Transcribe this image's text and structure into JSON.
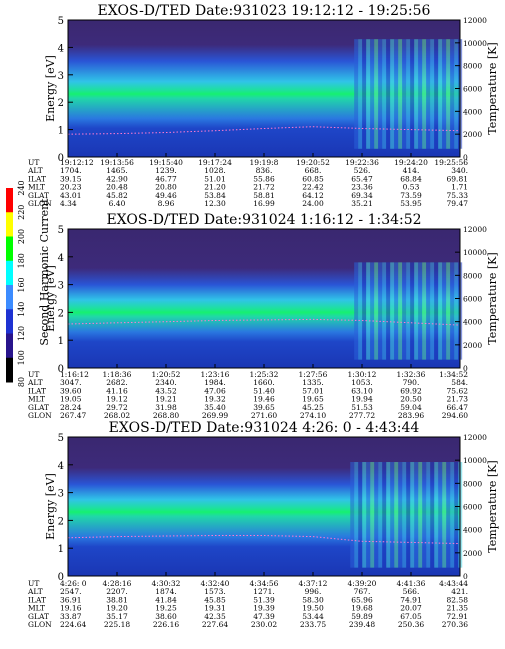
{
  "colorbar": {
    "label": "Second Harmonic Current",
    "ticks": [
      "240",
      "220",
      "200",
      "180",
      "160",
      "140",
      "120",
      "100",
      "80"
    ],
    "colors": [
      "#ff0000",
      "#ffff00",
      "#00ff00",
      "#00ffff",
      "#3c8cff",
      "#1e32d2",
      "#28148c",
      "#000000"
    ]
  },
  "chart_data": [
    {
      "type": "heatmap",
      "title": "EXOS-D/TED  Date:931023  19:12:12 - 19:25:56",
      "ylabel": "Energy [eV]",
      "y2label": "Temperature [K]",
      "ylim": [
        0,
        5
      ],
      "y2lim": [
        0,
        12000
      ],
      "yticks": [
        "0",
        "1",
        "2",
        "3",
        "4",
        "5"
      ],
      "y2ticks": [
        "0",
        "2000",
        "4000",
        "6000",
        "8000",
        "10000",
        "12000"
      ],
      "row_labels": [
        "UT",
        "ALT",
        "ILAT",
        "MLT",
        "GLAT",
        "GLON"
      ],
      "columns": [
        [
          "19:12:12",
          "1704.",
          "39.15",
          "20.23",
          "43.01",
          "4.34"
        ],
        [
          "19:13:56",
          "1465.",
          "42.90",
          "20.48",
          "45.82",
          "6.40"
        ],
        [
          "19:15:40",
          "1239.",
          "46.77",
          "20.80",
          "49.46",
          "8.96"
        ],
        [
          "19:17:24",
          "1028.",
          "51.01",
          "21.20",
          "53.84",
          "12.30"
        ],
        [
          "19:19:8",
          "836.",
          "55.86",
          "21.72",
          "58.81",
          "16.99"
        ],
        [
          "19:20:52",
          "668.",
          "60.85",
          "22.42",
          "64.12",
          "24.00"
        ],
        [
          "19:22:36",
          "526.",
          "65.47",
          "23.36",
          "69.34",
          "35.21"
        ],
        [
          "19:24:20",
          "414.",
          "68.84",
          "0.53",
          "73.59",
          "53.95"
        ],
        [
          "19:25:56",
          "340.",
          "69.81",
          "1.71",
          "75.33",
          "79.47"
        ]
      ],
      "band_center_ev": 2.3,
      "band_upper_ev": 3.5,
      "band_lower_ev": 1.3,
      "disturbed_from": 0.73,
      "temperature_k": [
        2000,
        2050,
        2150,
        2300,
        2500,
        2650,
        2500,
        2400,
        2300
      ]
    },
    {
      "type": "heatmap",
      "title": "EXOS-D/TED   Date:931024   1:16:12 - 1:34:52",
      "ylabel": "Energy [eV]",
      "y2label": "Temperature [K]",
      "ylim": [
        0,
        5
      ],
      "y2lim": [
        0,
        12000
      ],
      "yticks": [
        "0",
        "1",
        "2",
        "3",
        "4",
        "5"
      ],
      "y2ticks": [
        "0",
        "2000",
        "4000",
        "6000",
        "8000",
        "10000",
        "12000"
      ],
      "row_labels": [
        "UT",
        "ALT",
        "ILAT",
        "MLT",
        "GLAT",
        "GLON"
      ],
      "columns": [
        [
          "1:16:12",
          "3047.",
          "39.60",
          "19.05",
          "28.24",
          "267.47"
        ],
        [
          "1:18:36",
          "2682.",
          "41.16",
          "19.12",
          "29.72",
          "268.02"
        ],
        [
          "1:20:52",
          "2340.",
          "43.52",
          "19.21",
          "31.98",
          "268.80"
        ],
        [
          "1:23:16",
          "1984.",
          "47.06",
          "19.32",
          "35.40",
          "269.99"
        ],
        [
          "1:25:32",
          "1660.",
          "51.40",
          "19.46",
          "39.65",
          "271.60"
        ],
        [
          "1:27:56",
          "1335.",
          "57.01",
          "19.65",
          "45.25",
          "274.10"
        ],
        [
          "1:30:12",
          "1053.",
          "63.10",
          "19.94",
          "51.53",
          "277.72"
        ],
        [
          "1:32:36",
          "790.",
          "69.92",
          "20.50",
          "59.04",
          "283.96"
        ],
        [
          "1:34:52",
          "584.",
          "75.62",
          "21.73",
          "66.47",
          "294.60"
        ]
      ],
      "band_center_ev": 2.0,
      "band_upper_ev": 3.0,
      "band_lower_ev": 1.2,
      "disturbed_from": 0.73,
      "temperature_k": [
        3800,
        3900,
        4000,
        4100,
        4150,
        4200,
        4100,
        3900,
        3700
      ]
    },
    {
      "type": "heatmap",
      "title": "EXOS-D/TED   Date:931024   4:26: 0 - 4:43:44",
      "ylabel": "Energy [eV]",
      "y2label": "Temperature [K]",
      "ylim": [
        0,
        5
      ],
      "y2lim": [
        0,
        12000
      ],
      "yticks": [
        "0",
        "1",
        "2",
        "3",
        "4",
        "5"
      ],
      "y2ticks": [
        "0",
        "2000",
        "4000",
        "6000",
        "8000",
        "10000",
        "12000"
      ],
      "row_labels": [
        "UT",
        "ALT",
        "ILAT",
        "MLT",
        "GLAT",
        "GLON"
      ],
      "columns": [
        [
          "4:26: 0",
          "2547.",
          "36.91",
          "19.16",
          "33.87",
          "224.64"
        ],
        [
          "4:28:16",
          "2207.",
          "38.81",
          "19.20",
          "35.17",
          "225.18"
        ],
        [
          "4:30:32",
          "1874.",
          "41.84",
          "19.25",
          "38.60",
          "226.16"
        ],
        [
          "4:32:40",
          "1573.",
          "45.85",
          "19.31",
          "42.35",
          "227.64"
        ],
        [
          "4:34:56",
          "1271.",
          "51.39",
          "19.39",
          "47.39",
          "230.02"
        ],
        [
          "4:37:12",
          "996.",
          "58.30",
          "19.50",
          "53.44",
          "233.75"
        ],
        [
          "4:39:20",
          "767.",
          "65.96",
          "19.68",
          "59.89",
          "239.48"
        ],
        [
          "4:41:36",
          "566.",
          "74.91",
          "20.07",
          "67.05",
          "250.36"
        ],
        [
          "4:43:44",
          "421.",
          "82.58",
          "21.35",
          "72.91",
          "270.36"
        ]
      ],
      "band_center_ev": 2.3,
      "band_upper_ev": 3.3,
      "band_lower_ev": 1.3,
      "disturbed_from": 0.72,
      "temperature_k": [
        3300,
        3400,
        3450,
        3500,
        3500,
        3400,
        3000,
        2900,
        2800
      ]
    }
  ]
}
